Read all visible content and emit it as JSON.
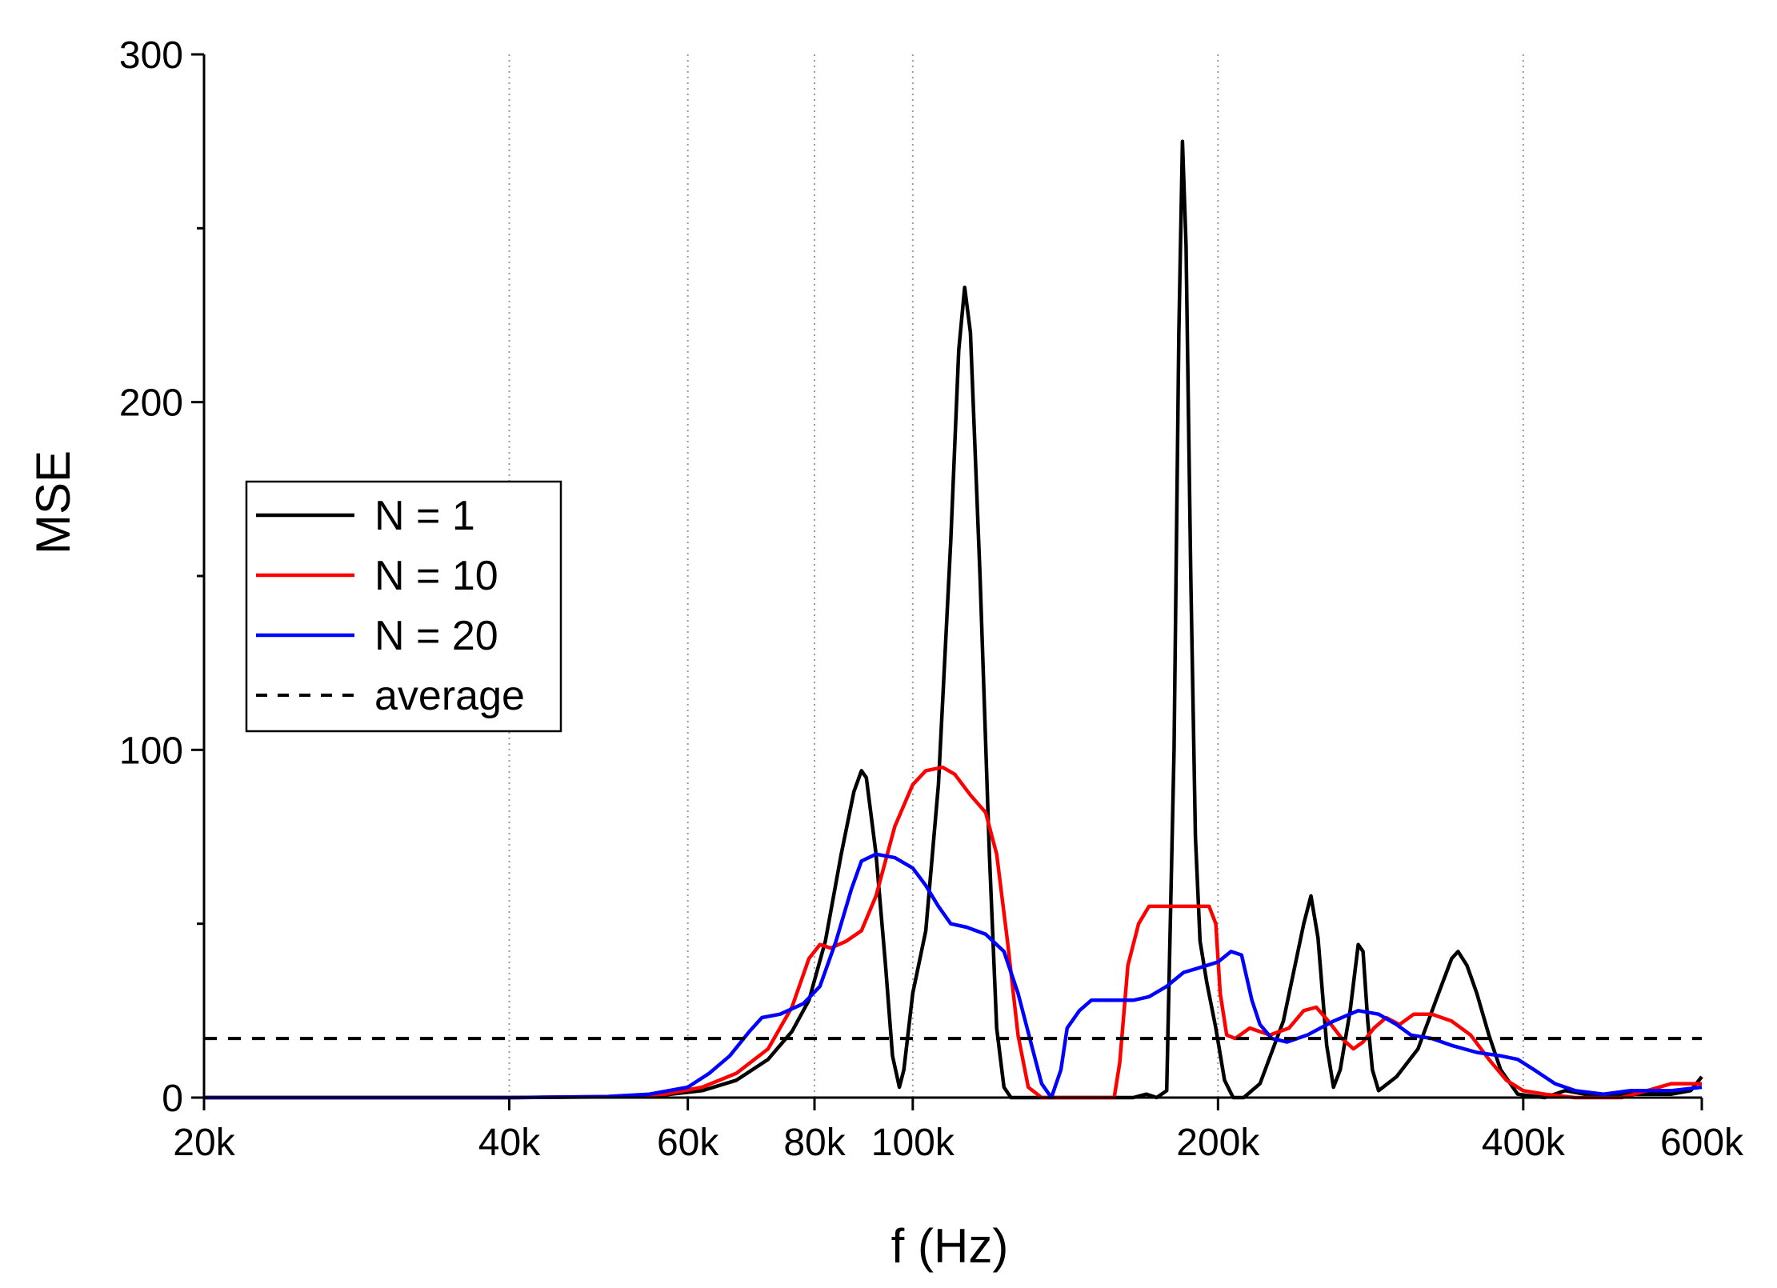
{
  "chart_data": {
    "type": "line",
    "title": "",
    "xlabel": "f (Hz)",
    "ylabel": "MSE",
    "xscale": "log",
    "xlim": [
      20000,
      600000
    ],
    "ylim": [
      0,
      300
    ],
    "x_ticks": [
      {
        "value": 20000,
        "label": "20k"
      },
      {
        "value": 40000,
        "label": "40k"
      },
      {
        "value": 60000,
        "label": "60k"
      },
      {
        "value": 80000,
        "label": "80k"
      },
      {
        "value": 100000,
        "label": "100k"
      },
      {
        "value": 200000,
        "label": "200k"
      },
      {
        "value": 400000,
        "label": "400k"
      },
      {
        "value": 600000,
        "label": "600k"
      }
    ],
    "x_gridlines": [
      40000,
      60000,
      80000,
      100000,
      200000,
      400000
    ],
    "y_ticks": [
      {
        "value": 0,
        "label": "0"
      },
      {
        "value": 100,
        "label": "100"
      },
      {
        "value": 200,
        "label": "200"
      },
      {
        "value": 300,
        "label": "300"
      }
    ],
    "y_minor_ticks": [
      50,
      150,
      250
    ],
    "legend": {
      "position": "left-middle",
      "entries": [
        "N = 1",
        "N = 10",
        "N = 20",
        "average"
      ]
    },
    "series": [
      {
        "name": "N = 1",
        "color": "#000000",
        "dash": "solid",
        "points": [
          [
            20000,
            0
          ],
          [
            40000,
            0
          ],
          [
            50000,
            0.2
          ],
          [
            57000,
            0.8
          ],
          [
            62000,
            2
          ],
          [
            67000,
            5
          ],
          [
            72000,
            11
          ],
          [
            76000,
            19
          ],
          [
            79000,
            28
          ],
          [
            82000,
            45
          ],
          [
            85000,
            70
          ],
          [
            87500,
            88
          ],
          [
            89000,
            94
          ],
          [
            90000,
            92
          ],
          [
            92000,
            70
          ],
          [
            94000,
            38
          ],
          [
            95500,
            12
          ],
          [
            97000,
            3
          ],
          [
            98000,
            8
          ],
          [
            100000,
            30
          ],
          [
            103000,
            48
          ],
          [
            106000,
            90
          ],
          [
            109000,
            160
          ],
          [
            111000,
            215
          ],
          [
            112500,
            233
          ],
          [
            114000,
            220
          ],
          [
            116500,
            150
          ],
          [
            119000,
            70
          ],
          [
            121000,
            20
          ],
          [
            123000,
            3
          ],
          [
            125000,
            0
          ],
          [
            130000,
            0
          ],
          [
            165000,
            0
          ],
          [
            170000,
            1
          ],
          [
            174000,
            0
          ],
          [
            178000,
            2
          ],
          [
            181000,
            100
          ],
          [
            183000,
            220
          ],
          [
            184500,
            275
          ],
          [
            186000,
            245
          ],
          [
            188000,
            150
          ],
          [
            190000,
            75
          ],
          [
            192000,
            45
          ],
          [
            195000,
            33
          ],
          [
            199000,
            20
          ],
          [
            203000,
            5
          ],
          [
            207000,
            0
          ],
          [
            212000,
            0
          ],
          [
            220000,
            4
          ],
          [
            232000,
            22
          ],
          [
            243000,
            50
          ],
          [
            247000,
            58
          ],
          [
            251000,
            46
          ],
          [
            256000,
            15
          ],
          [
            260000,
            3
          ],
          [
            264000,
            8
          ],
          [
            270000,
            25
          ],
          [
            275000,
            44
          ],
          [
            278000,
            42
          ],
          [
            281000,
            22
          ],
          [
            284000,
            8
          ],
          [
            288000,
            2
          ],
          [
            300000,
            6
          ],
          [
            315000,
            14
          ],
          [
            330000,
            30
          ],
          [
            340000,
            40
          ],
          [
            345000,
            42
          ],
          [
            352000,
            38
          ],
          [
            360000,
            30
          ],
          [
            370000,
            18
          ],
          [
            380000,
            8
          ],
          [
            395000,
            1
          ],
          [
            420000,
            0
          ],
          [
            440000,
            2
          ],
          [
            460000,
            1
          ],
          [
            500000,
            1
          ],
          [
            560000,
            1
          ],
          [
            585000,
            2
          ],
          [
            600000,
            6
          ]
        ]
      },
      {
        "name": "N = 10",
        "color": "#ff0000",
        "dash": "solid",
        "points": [
          [
            20000,
            0
          ],
          [
            40000,
            0
          ],
          [
            50000,
            0.3
          ],
          [
            57000,
            1
          ],
          [
            62000,
            3
          ],
          [
            67000,
            7
          ],
          [
            72000,
            14
          ],
          [
            76000,
            26
          ],
          [
            79000,
            40
          ],
          [
            81000,
            44
          ],
          [
            83000,
            43
          ],
          [
            86000,
            45
          ],
          [
            89000,
            48
          ],
          [
            92000,
            58
          ],
          [
            96000,
            78
          ],
          [
            100000,
            90
          ],
          [
            103000,
            94
          ],
          [
            107000,
            95
          ],
          [
            110000,
            93
          ],
          [
            114000,
            87
          ],
          [
            118000,
            82
          ],
          [
            121000,
            70
          ],
          [
            124000,
            45
          ],
          [
            127000,
            18
          ],
          [
            130000,
            3
          ],
          [
            134000,
            0
          ],
          [
            140000,
            0
          ],
          [
            150000,
            0
          ],
          [
            158000,
            0
          ],
          [
            160000,
            10
          ],
          [
            163000,
            38
          ],
          [
            167000,
            50
          ],
          [
            171000,
            55
          ],
          [
            180000,
            55
          ],
          [
            190000,
            55
          ],
          [
            196000,
            55
          ],
          [
            199000,
            50
          ],
          [
            201000,
            30
          ],
          [
            204000,
            18
          ],
          [
            208000,
            17
          ],
          [
            215000,
            20
          ],
          [
            225000,
            18
          ],
          [
            235000,
            20
          ],
          [
            243000,
            25
          ],
          [
            250000,
            26
          ],
          [
            257000,
            22
          ],
          [
            265000,
            17
          ],
          [
            272000,
            14
          ],
          [
            278000,
            16
          ],
          [
            285000,
            20
          ],
          [
            293000,
            23
          ],
          [
            302000,
            21
          ],
          [
            312000,
            24
          ],
          [
            325000,
            24
          ],
          [
            340000,
            22
          ],
          [
            355000,
            18
          ],
          [
            370000,
            11
          ],
          [
            385000,
            5
          ],
          [
            400000,
            2
          ],
          [
            420000,
            1
          ],
          [
            450000,
            0
          ],
          [
            500000,
            0
          ],
          [
            530000,
            2
          ],
          [
            560000,
            4
          ],
          [
            600000,
            4
          ]
        ]
      },
      {
        "name": "N = 20",
        "color": "#0000ff",
        "dash": "solid",
        "points": [
          [
            20000,
            0
          ],
          [
            40000,
            0
          ],
          [
            50000,
            0.3
          ],
          [
            55000,
            1
          ],
          [
            60000,
            3
          ],
          [
            63000,
            7
          ],
          [
            66000,
            12
          ],
          [
            69000,
            19
          ],
          [
            71000,
            23
          ],
          [
            74000,
            24
          ],
          [
            78000,
            27
          ],
          [
            81000,
            32
          ],
          [
            84000,
            45
          ],
          [
            87000,
            60
          ],
          [
            89000,
            68
          ],
          [
            92000,
            70
          ],
          [
            96000,
            69
          ],
          [
            100000,
            66
          ],
          [
            103000,
            61
          ],
          [
            106000,
            55
          ],
          [
            109000,
            50
          ],
          [
            113000,
            49
          ],
          [
            118000,
            47
          ],
          [
            123000,
            42
          ],
          [
            127000,
            30
          ],
          [
            131000,
            15
          ],
          [
            134000,
            4
          ],
          [
            137000,
            0
          ],
          [
            140000,
            8
          ],
          [
            142000,
            20
          ],
          [
            146000,
            25
          ],
          [
            150000,
            28
          ],
          [
            158000,
            28
          ],
          [
            165000,
            28
          ],
          [
            171000,
            29
          ],
          [
            178000,
            32
          ],
          [
            185000,
            36
          ],
          [
            190000,
            37
          ],
          [
            195000,
            38
          ],
          [
            200000,
            39
          ],
          [
            206000,
            42
          ],
          [
            211000,
            41
          ],
          [
            216000,
            28
          ],
          [
            220000,
            21
          ],
          [
            226000,
            17
          ],
          [
            234000,
            16
          ],
          [
            245000,
            18
          ],
          [
            260000,
            22
          ],
          [
            275000,
            25
          ],
          [
            288000,
            24
          ],
          [
            300000,
            21
          ],
          [
            310000,
            18
          ],
          [
            325000,
            17
          ],
          [
            340000,
            15
          ],
          [
            360000,
            13
          ],
          [
            380000,
            12
          ],
          [
            395000,
            11
          ],
          [
            410000,
            8
          ],
          [
            430000,
            4
          ],
          [
            450000,
            2
          ],
          [
            480000,
            1
          ],
          [
            510000,
            2
          ],
          [
            560000,
            2
          ],
          [
            600000,
            3
          ]
        ]
      },
      {
        "name": "average",
        "color": "#000000",
        "dash": "dashed",
        "points": [
          [
            20000,
            17
          ],
          [
            600000,
            17
          ]
        ]
      }
    ]
  }
}
